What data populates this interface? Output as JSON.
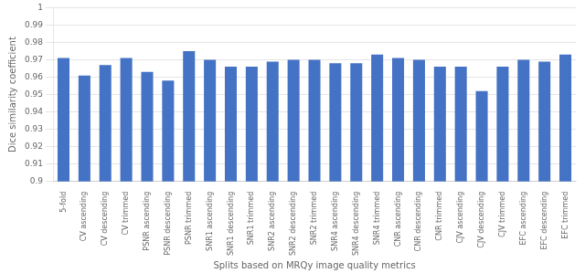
{
  "chart_data": {
    "type": "bar",
    "categories": [
      "5-fold",
      "CV ascending",
      "CV descending",
      "CV trimmed",
      "PSNR ascending",
      "PSNR descending",
      "PSNR trimmed",
      "SNR1 ascending",
      "SNR1 descending",
      "SNR1 trimmed",
      "SNR2 ascending",
      "SNR2 descending",
      "SNR2 trimmed",
      "SNR4 ascending",
      "SNR4 descending",
      "SNR4 trimmed",
      "CNR ascending",
      "CNR descending",
      "CNR trimmed",
      "CJV ascending",
      "CJV descending",
      "CJV trimmed",
      "EFC ascending",
      "EFC descending",
      "EFC trimmed"
    ],
    "values": [
      0.971,
      0.961,
      0.967,
      0.971,
      0.963,
      0.958,
      0.975,
      0.97,
      0.966,
      0.966,
      0.969,
      0.97,
      0.97,
      0.968,
      0.968,
      0.973,
      0.971,
      0.97,
      0.966,
      0.966,
      0.952,
      0.966,
      0.97,
      0.969,
      0.973
    ],
    "color": "#4472C4",
    "xlabel": "Splits based on MRQy image quality metrics",
    "ylabel": "Dice similarity coefficient",
    "ylim": [
      0.9,
      1.0
    ],
    "yticks": [
      0.9,
      0.91,
      0.92,
      0.93,
      0.94,
      0.95,
      0.96,
      0.97,
      0.98,
      0.99,
      1
    ],
    "grid": true
  }
}
